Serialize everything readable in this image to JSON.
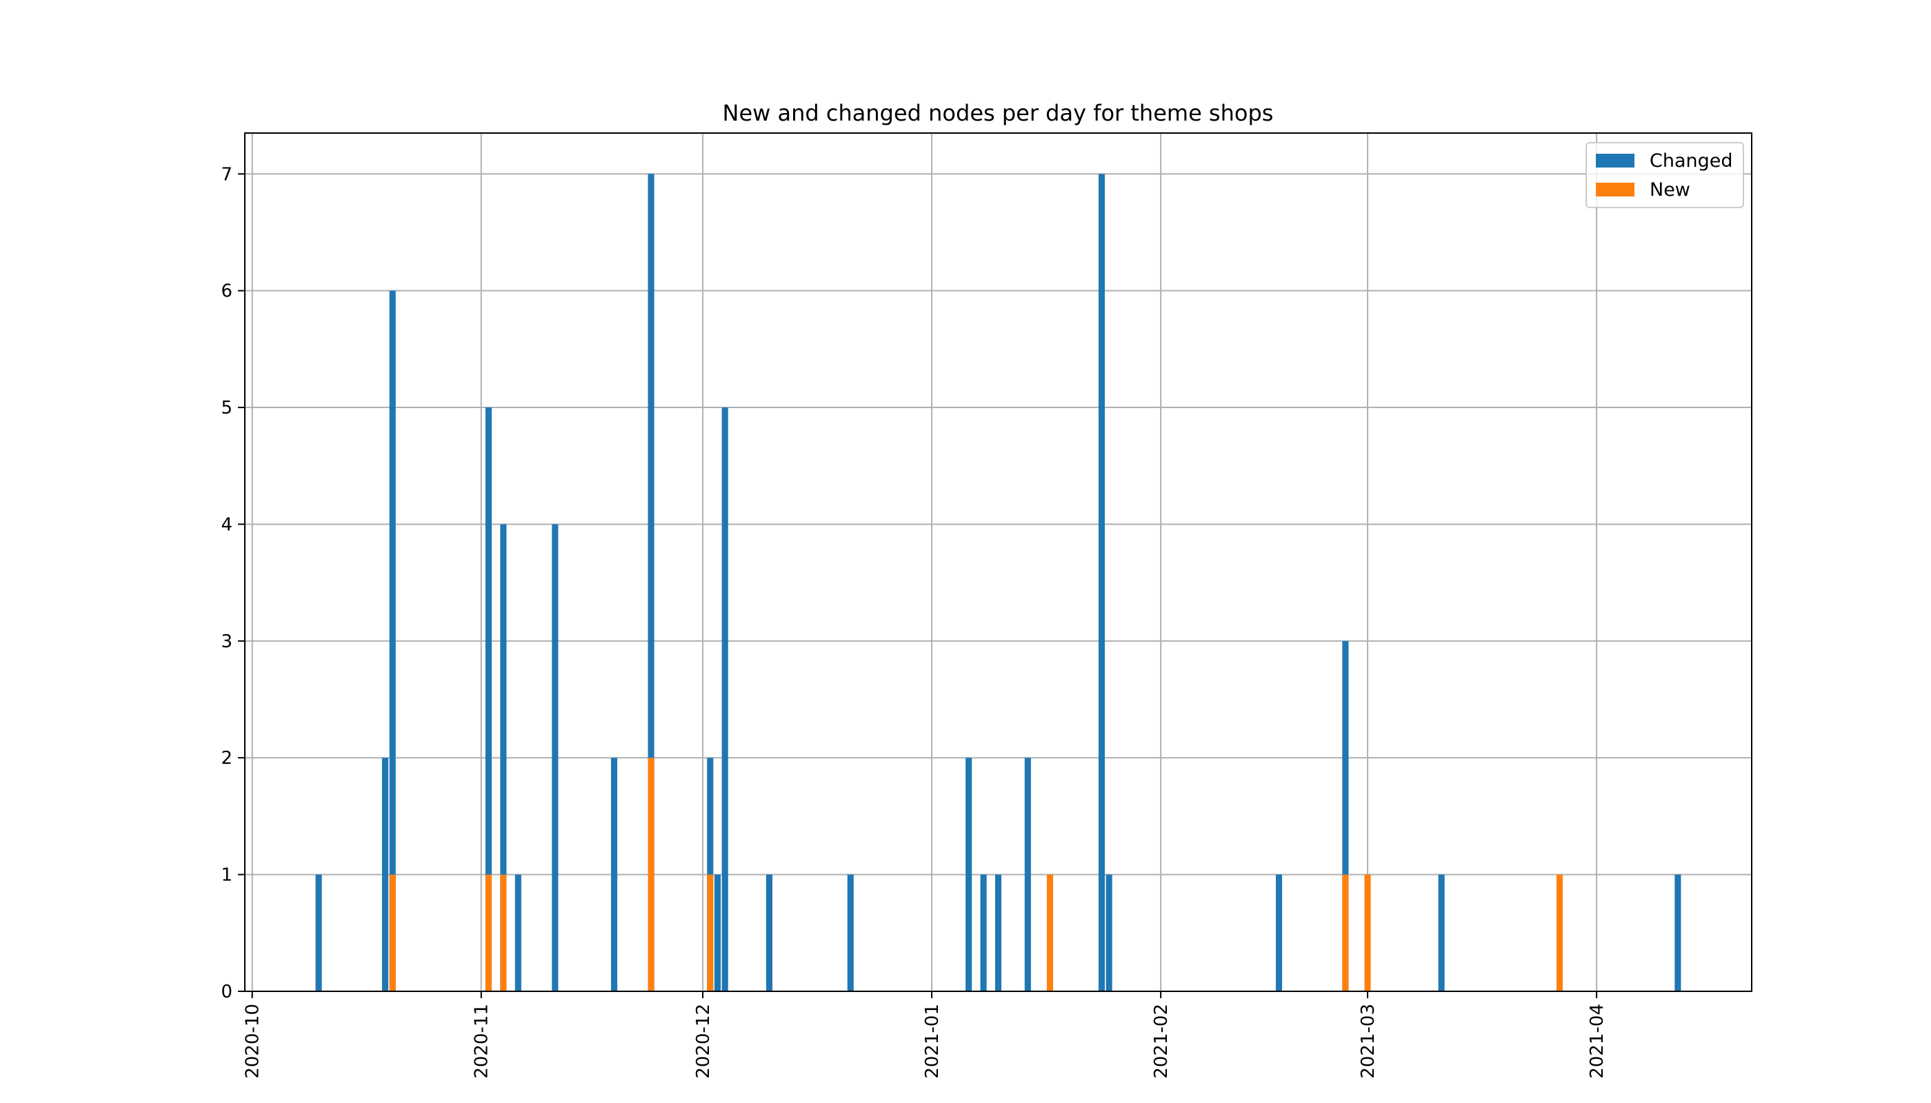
{
  "chart_data": {
    "type": "bar",
    "title": "New and changed nodes per day for theme shops",
    "xlabel": "",
    "ylabel": "",
    "x_axis_type": "date",
    "xlim": [
      "2020-09-30",
      "2021-04-22"
    ],
    "ylim": [
      0,
      7.35
    ],
    "grid": true,
    "legend_position": "top-right",
    "x_ticks": [
      "2020-10",
      "2020-11",
      "2020-12",
      "2021-01",
      "2021-02",
      "2021-03",
      "2021-04"
    ],
    "y_ticks": [
      0,
      1,
      2,
      3,
      4,
      5,
      6,
      7
    ],
    "colors": {
      "Changed": "#1f77b4",
      "New": "#ff7f0e"
    },
    "series": [
      {
        "name": "Changed",
        "points": [
          {
            "x": "2020-10-10",
            "y": 1
          },
          {
            "x": "2020-10-19",
            "y": 2
          },
          {
            "x": "2020-10-20",
            "y": 6
          },
          {
            "x": "2020-11-02",
            "y": 5
          },
          {
            "x": "2020-11-04",
            "y": 4
          },
          {
            "x": "2020-11-06",
            "y": 1
          },
          {
            "x": "2020-11-11",
            "y": 4
          },
          {
            "x": "2020-11-19",
            "y": 2
          },
          {
            "x": "2020-11-24",
            "y": 7
          },
          {
            "x": "2020-12-02",
            "y": 2
          },
          {
            "x": "2020-12-03",
            "y": 1
          },
          {
            "x": "2020-12-04",
            "y": 5
          },
          {
            "x": "2020-12-10",
            "y": 1
          },
          {
            "x": "2020-12-21",
            "y": 1
          },
          {
            "x": "2021-01-06",
            "y": 2
          },
          {
            "x": "2021-01-08",
            "y": 1
          },
          {
            "x": "2021-01-10",
            "y": 1
          },
          {
            "x": "2021-01-14",
            "y": 2
          },
          {
            "x": "2021-01-24",
            "y": 7
          },
          {
            "x": "2021-01-25",
            "y": 1
          },
          {
            "x": "2021-02-17",
            "y": 1
          },
          {
            "x": "2021-02-26",
            "y": 3
          },
          {
            "x": "2021-03-11",
            "y": 1
          },
          {
            "x": "2021-04-12",
            "y": 1
          }
        ]
      },
      {
        "name": "New",
        "points": [
          {
            "x": "2020-10-20",
            "y": 1
          },
          {
            "x": "2020-11-02",
            "y": 1
          },
          {
            "x": "2020-11-04",
            "y": 1
          },
          {
            "x": "2020-11-24",
            "y": 2
          },
          {
            "x": "2020-12-02",
            "y": 1
          },
          {
            "x": "2021-01-17",
            "y": 1
          },
          {
            "x": "2021-02-26",
            "y": 1
          },
          {
            "x": "2021-03-01",
            "y": 1
          },
          {
            "x": "2021-03-27",
            "y": 1
          }
        ]
      }
    ]
  }
}
